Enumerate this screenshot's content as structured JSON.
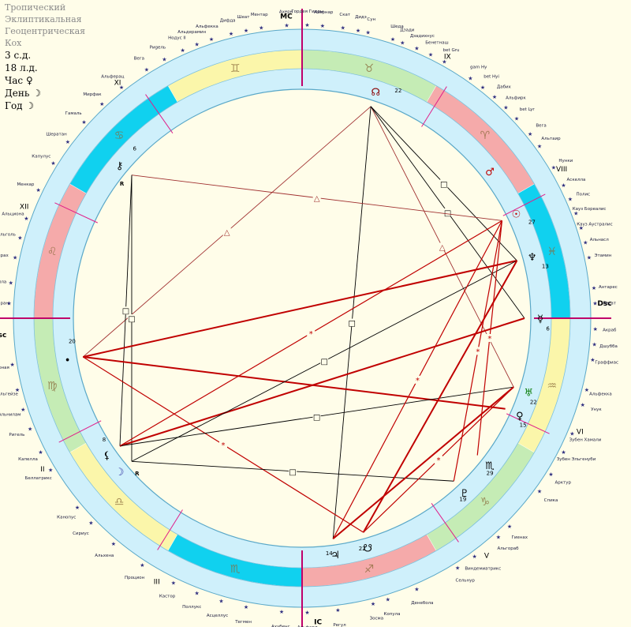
{
  "header": {
    "title_lines": [
      "Тропический",
      "Эклиптикальная",
      "Геоцентрическая",
      "Кох"
    ],
    "info_lines": [
      "3 с.д.",
      "18 л.д.",
      "Час ♀",
      "День ☽",
      "Год ☽"
    ]
  },
  "colors": {
    "background": "#fffde9",
    "ring": "#cff0fb",
    "fire": "#f5aaaa",
    "earth": "#c5ecb5",
    "air": "#fbf6aa",
    "water": "#10d1ef",
    "hard_aspect": "#c00000",
    "soft_aspect": "#a03030",
    "square": "#000000",
    "axis": "#c0006a",
    "cusp": "#e0208a"
  },
  "chart_data": {
    "type": "natal-wheel",
    "asc_degree": 150,
    "signs": [
      {
        "symbol": "♈",
        "name": "aries",
        "element": "fire"
      },
      {
        "symbol": "♉",
        "name": "taurus",
        "element": "earth"
      },
      {
        "symbol": "♊",
        "name": "gemini",
        "element": "air"
      },
      {
        "symbol": "♋",
        "name": "cancer",
        "element": "water"
      },
      {
        "symbol": "♌",
        "name": "leo",
        "element": "fire"
      },
      {
        "symbol": "♍",
        "name": "virgo",
        "element": "earth"
      },
      {
        "symbol": "♎",
        "name": "libra",
        "element": "air"
      },
      {
        "symbol": "♏",
        "name": "scorpio",
        "element": "water"
      },
      {
        "symbol": "♐",
        "name": "sagittarius",
        "element": "fire"
      },
      {
        "symbol": "♑",
        "name": "capricorn",
        "element": "earth"
      },
      {
        "symbol": "♒",
        "name": "aquarius",
        "element": "air"
      },
      {
        "symbol": "♓",
        "name": "pisces",
        "element": "water"
      }
    ],
    "houses": [
      {
        "label": "Asc",
        "lon": 150,
        "axis": true
      },
      {
        "label": "II",
        "lon": 177
      },
      {
        "label": "III",
        "lon": 208
      },
      {
        "label": "IC",
        "lon": 240,
        "axis": true
      },
      {
        "label": "V",
        "lon": 275
      },
      {
        "label": "VI",
        "lon": 305
      },
      {
        "label": "Dsc",
        "lon": 330,
        "axis": true
      },
      {
        "label": "VIII",
        "lon": 357
      },
      {
        "label": "IX",
        "lon": 28
      },
      {
        "label": "MC",
        "lon": 60,
        "axis": true
      },
      {
        "label": "XI",
        "lon": 95
      },
      {
        "label": "XII",
        "lon": 125
      }
    ],
    "planets": [
      {
        "id": "node",
        "glyph": "☊",
        "deg": "22",
        "lon": 42,
        "color": "#8a0000"
      },
      {
        "id": "chiron",
        "glyph": "⚷",
        "deg": "6",
        "lon": 110,
        "color": "#000000",
        "retro": "R"
      },
      {
        "id": "pt20",
        "glyph": "•",
        "deg": "20",
        "lon": 160,
        "color": "#000000"
      },
      {
        "id": "moon",
        "glyph": "☽",
        "deg": "",
        "lon": 190,
        "color": "#3030a0",
        "retro": "R"
      },
      {
        "id": "lilith",
        "glyph": "⚸",
        "deg": "8",
        "lon": 185,
        "color": "#000000"
      },
      {
        "id": "jupiter",
        "glyph": "♃",
        "deg": "14",
        "lon": 248,
        "color": "#000000"
      },
      {
        "id": "snode",
        "glyph": "☋",
        "deg": "22",
        "lon": 256,
        "color": "#000000"
      },
      {
        "id": "pluto",
        "glyph": "♇",
        "deg": "19",
        "lon": 283,
        "color": "#000000"
      },
      {
        "id": "mc2",
        "glyph": "♏",
        "deg": "29",
        "lon": 292,
        "color": "#000000"
      },
      {
        "id": "venus",
        "glyph": "♀",
        "deg": "15",
        "lon": 306,
        "color": "#000000"
      },
      {
        "id": "uranus",
        "glyph": "♅",
        "deg": "22",
        "lon": 312,
        "color": "#108010"
      },
      {
        "id": "mercury",
        "glyph": "☿",
        "deg": "6",
        "lon": 330,
        "color": "#000000"
      },
      {
        "id": "neptune",
        "glyph": "♆",
        "deg": "13",
        "lon": 345,
        "color": "#000000"
      },
      {
        "id": "sun",
        "glyph": "☉",
        "deg": "27",
        "lon": 356,
        "color": "#c00000"
      },
      {
        "id": "mars",
        "glyph": "♂",
        "deg": "",
        "lon": 8,
        "color": "#c00000"
      }
    ],
    "aspects": [
      {
        "from": "node",
        "to": "pt20",
        "kind": "trine"
      },
      {
        "from": "node",
        "to": "uranus",
        "kind": "trine"
      },
      {
        "from": "node",
        "to": "mercury",
        "kind": "square"
      },
      {
        "from": "node",
        "to": "neptune",
        "kind": "square"
      },
      {
        "from": "node",
        "to": "jupiter",
        "kind": "square"
      },
      {
        "from": "chiron",
        "to": "sun",
        "kind": "trine"
      },
      {
        "from": "chiron",
        "to": "moon",
        "kind": "square"
      },
      {
        "from": "chiron",
        "to": "lilith",
        "kind": "square"
      },
      {
        "from": "pt20",
        "to": "neptune",
        "kind": "opposition"
      },
      {
        "from": "pt20",
        "to": "venus",
        "kind": "opposition"
      },
      {
        "from": "pt20",
        "to": "snode",
        "kind": "minor"
      },
      {
        "from": "lilith",
        "to": "mercury",
        "kind": "opposition"
      },
      {
        "from": "lilith",
        "to": "uranus",
        "kind": "square"
      },
      {
        "from": "lilith",
        "to": "sun",
        "kind": "minor"
      },
      {
        "from": "moon",
        "to": "neptune",
        "kind": "square"
      },
      {
        "from": "moon",
        "to": "pluto",
        "kind": "square"
      },
      {
        "from": "jupiter",
        "to": "uranus",
        "kind": "opposition"
      },
      {
        "from": "jupiter",
        "to": "sun",
        "kind": "minor"
      },
      {
        "from": "snode",
        "to": "neptune",
        "kind": "opposition"
      },
      {
        "from": "snode",
        "to": "uranus",
        "kind": "minor"
      },
      {
        "from": "pluto",
        "to": "sun",
        "kind": "minor"
      },
      {
        "from": "mc2",
        "to": "sun",
        "kind": "minor"
      }
    ],
    "star_labels": [
      {
        "text": "Нодус II",
        "lon": 84
      },
      {
        "text": "Альдерамин",
        "lon": 81
      },
      {
        "text": "Альфекка",
        "lon": 78
      },
      {
        "text": "Дифда",
        "lon": 74
      },
      {
        "text": "Шеат",
        "lon": 71
      },
      {
        "text": "Ментар",
        "lon": 68
      },
      {
        "text": "Ахерн",
        "lon": 63
      },
      {
        "text": "Гордея Гидры",
        "lon": 59
      },
      {
        "text": "Ахернар",
        "lon": 56
      },
      {
        "text": "Скат",
        "lon": 52
      },
      {
        "text": "Дидэ",
        "lon": 49
      },
      {
        "text": "Сун",
        "lon": 47
      },
      {
        "text": "Шеда",
        "lon": 42
      },
      {
        "text": "Дзади",
        "lon": 40
      },
      {
        "text": "Дзадихнус",
        "lon": 37
      },
      {
        "text": "Бенетнаш",
        "lon": 34
      },
      {
        "text": "bet Gru",
        "lon": 31
      },
      {
        "text": "gam Hy",
        "lon": 25
      },
      {
        "text": "bet Hyi",
        "lon": 22
      },
      {
        "text": "Дабих",
        "lon": 19
      },
      {
        "text": "Альфирк",
        "lon": 16
      },
      {
        "text": "bet Lyr",
        "lon": 13
      },
      {
        "text": "Вега",
        "lon": 9
      },
      {
        "text": "Альтаир",
        "lon": 6
      },
      {
        "text": "Нунки",
        "lon": 1
      },
      {
        "text": "Аскелла",
        "lon": 357
      },
      {
        "text": "Полис",
        "lon": 354
      },
      {
        "text": "Кауз Бореалис",
        "lon": 351
      },
      {
        "text": "Кауз Аустралис",
        "lon": 348
      },
      {
        "text": "Альнасл",
        "lon": 345
      },
      {
        "text": "Этамин",
        "lon": 342
      },
      {
        "text": "Антарес",
        "lon": 336
      },
      {
        "text": "Лесат",
        "lon": 333
      },
      {
        "text": "Акраб",
        "lon": 328
      },
      {
        "text": "Дшубба",
        "lon": 325
      },
      {
        "text": "Грaффиас",
        "lon": 322
      },
      {
        "text": "Альфекка",
        "lon": 316
      },
      {
        "text": "Унук",
        "lon": 313
      },
      {
        "text": "Зубен Хамали",
        "lon": 307
      },
      {
        "text": "Зубен Эльгенуби",
        "lon": 303
      },
      {
        "text": "Арктур",
        "lon": 298
      },
      {
        "text": "Спика",
        "lon": 294
      },
      {
        "text": "Гиенах",
        "lon": 285
      },
      {
        "text": "Альгораб",
        "lon": 282
      },
      {
        "text": "Виндемиатрикс",
        "lon": 276
      },
      {
        "text": "Сельнур",
        "lon": 272
      },
      {
        "text": "Денебола",
        "lon": 263
      },
      {
        "text": "Копула",
        "lon": 257
      },
      {
        "text": "Зосма",
        "lon": 254
      },
      {
        "text": "Регул",
        "lon": 247
      },
      {
        "text": "Альфард",
        "lon": 241
      },
      {
        "text": "Ахубенс",
        "lon": 236
      },
      {
        "text": "Тегмен",
        "lon": 229
      },
      {
        "text": "Асцеллус",
        "lon": 224
      },
      {
        "text": "Поллукс",
        "lon": 219
      },
      {
        "text": "Кастор",
        "lon": 214
      },
      {
        "text": "Процион",
        "lon": 207
      },
      {
        "text": "Альхена",
        "lon": 200
      },
      {
        "text": "Сириус",
        "lon": 194
      },
      {
        "text": "Канопус",
        "lon": 190
      },
      {
        "text": "Беллатрикс",
        "lon": 181
      },
      {
        "text": "Капелла",
        "lon": 177
      },
      {
        "text": "Ригель",
        "lon": 172
      },
      {
        "text": "Альнилам",
        "lon": 168
      },
      {
        "text": "Бетельгейзе",
        "lon": 164
      },
      {
        "text": "Полярная",
        "lon": 159
      },
      {
        "text": "Альдебаран",
        "lon": 147
      },
      {
        "text": "Капелла",
        "lon": 143
      },
      {
        "text": "Мирах",
        "lon": 138
      },
      {
        "text": "Альголь",
        "lon": 134
      },
      {
        "text": "Альциона",
        "lon": 130
      },
      {
        "text": "Менкар",
        "lon": 124
      },
      {
        "text": "Капулус",
        "lon": 118
      },
      {
        "text": "Шератан",
        "lon": 113
      },
      {
        "text": "Гамаль",
        "lon": 108
      },
      {
        "text": "Мирфак",
        "lon": 103
      },
      {
        "text": "Альферац",
        "lon": 98
      },
      {
        "text": "Вега",
        "lon": 92
      },
      {
        "text": "Риgель",
        "lon": 88
      }
    ]
  }
}
